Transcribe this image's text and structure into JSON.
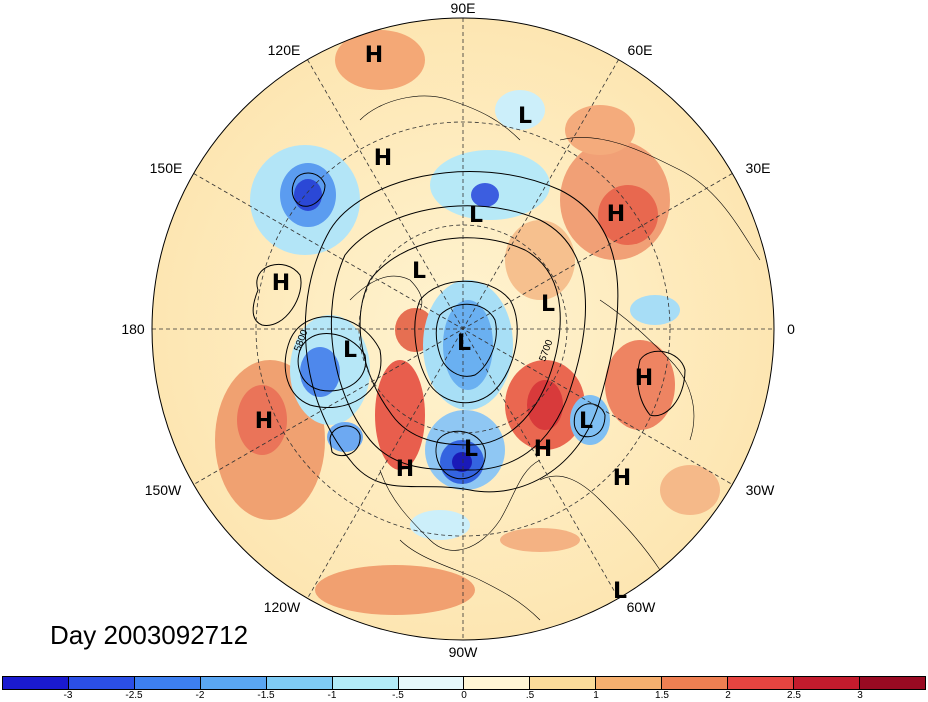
{
  "title": "Day 2003092712",
  "longitude_labels": [
    "90E",
    "60E",
    "30E",
    "0",
    "30W",
    "60W",
    "90W",
    "120W",
    "150W",
    "180",
    "150E",
    "120E"
  ],
  "contour_labels": [
    "5800",
    "5700"
  ],
  "pressure_centers": [
    "H",
    "H",
    "L",
    "H",
    "L",
    "L",
    "H",
    "L",
    "H",
    "L",
    "L",
    "H",
    "H",
    "L",
    "L",
    "H",
    "H",
    "L",
    "L"
  ],
  "colorbar": {
    "labels": [
      "-3",
      "-2.5",
      "-2",
      "-1.5",
      "-1",
      "-.5",
      "0",
      ".5",
      "1",
      "1.5",
      "2",
      "2.5",
      "3"
    ],
    "colors": [
      "#1a1ad0",
      "#2b4fe6",
      "#3d7ff0",
      "#5aa6f2",
      "#7fcbf4",
      "#b3ecf8",
      "#e6f8fb",
      "#fff6d5",
      "#fbdc9a",
      "#f6b06f",
      "#ee7f52",
      "#e64440",
      "#c31b2d",
      "#990a22"
    ]
  }
}
